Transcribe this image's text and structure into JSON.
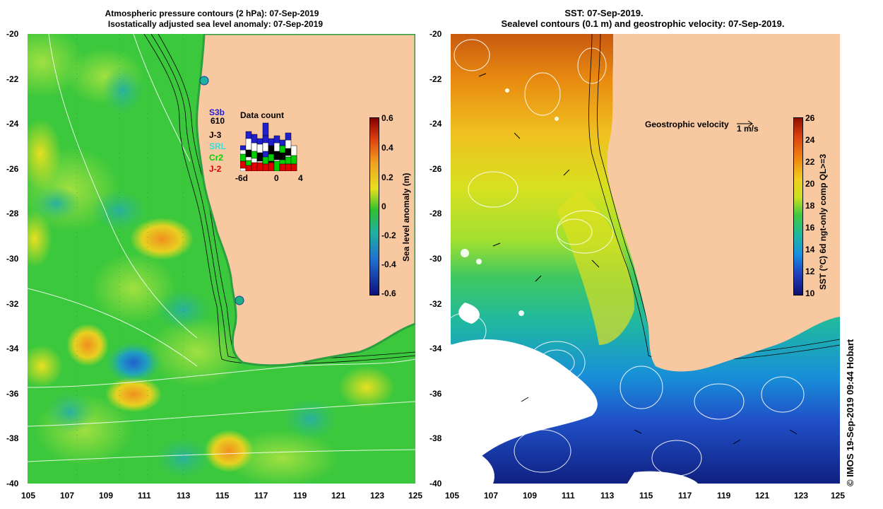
{
  "left_panel": {
    "title_line1": "Atmospheric pressure contours (2 hPa): 07-Sep-2019",
    "title_line2": "Isostatically adjusted sea level anomaly: 07-Sep-2019",
    "colorbar": {
      "label": "Sea level anomaly (m)",
      "ticks": [
        "0.6",
        "0.4",
        "0.2",
        "0",
        "-0.2",
        "-0.4",
        "-0.6"
      ]
    },
    "legend": {
      "title": "Data count",
      "missions": [
        {
          "name": "S3b",
          "color": "#1f1fd0"
        },
        {
          "name": "610",
          "color": "#000000"
        },
        {
          "name": "J-3",
          "color": "#000000"
        },
        {
          "name": "SRL",
          "color": "#33e0e0"
        },
        {
          "name": "Cr2",
          "color": "#00d000"
        },
        {
          "name": "J-2",
          "color": "#e00000"
        }
      ],
      "axis_ticks": [
        "-6d",
        "0",
        "4"
      ]
    }
  },
  "right_panel": {
    "title_line1": "SST: 07-Sep-2019.",
    "title_line2": "Sealevel contours (0.1 m) and geostrophic velocity: 07-Sep-2019.",
    "velocity_label": "Geostrophic velocity",
    "velocity_scale": "1 m/s",
    "colorbar": {
      "label": "SST (°C) 6d ngt-only comp QL>=3",
      "ticks": [
        "26",
        "24",
        "22",
        "20",
        "18",
        "16",
        "14",
        "12",
        "10"
      ]
    }
  },
  "axes": {
    "x_ticks": [
      "105",
      "107",
      "109",
      "111",
      "113",
      "115",
      "117",
      "119",
      "121",
      "123",
      "125"
    ],
    "y_ticks": [
      "-20",
      "-22",
      "-24",
      "-26",
      "-28",
      "-30",
      "-32",
      "-34",
      "-36",
      "-38",
      "-40"
    ]
  },
  "credit": "© IMOS 19-Sep-2019 09:44 Hobart",
  "colors": {
    "land": "#f8c8a0",
    "sla_mid": "#3cc83c",
    "sla_high": "#f0a020",
    "sla_low": "#1890c8"
  }
}
